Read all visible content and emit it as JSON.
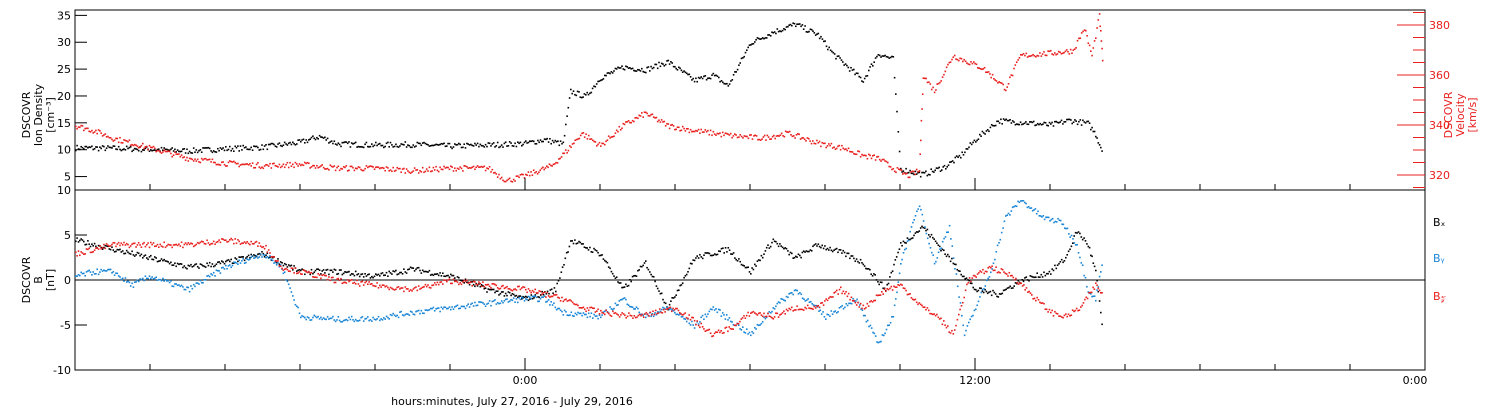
{
  "chart_data": [
    {
      "type": "scatter",
      "ylabel_left": [
        "DSCOVR",
        "Ion Density",
        "[cm⁻³]"
      ],
      "ylabel_right": [
        "DSCOVR",
        "Velocity",
        "[km/s]"
      ],
      "yticks_left": [
        5,
        10,
        15,
        20,
        25,
        30,
        35
      ],
      "ylim_left": [
        2.5,
        36
      ],
      "yticks_right": [
        320,
        340,
        360,
        380
      ],
      "ylim_right": [
        314,
        386
      ],
      "series": [
        {
          "color": "#000000",
          "axis": "left",
          "points": [
            [
              0,
              10.5
            ],
            [
              1,
              10.4
            ],
            [
              2,
              10.2
            ],
            [
              3,
              9.9
            ],
            [
              4,
              10.3
            ],
            [
              5,
              10.6
            ],
            [
              6,
              11.5
            ],
            [
              6.5,
              12.6
            ],
            [
              7,
              11.2
            ],
            [
              8,
              11.0
            ],
            [
              9,
              11.1
            ],
            [
              10,
              10.8
            ],
            [
              11,
              11.0
            ],
            [
              12,
              11.3
            ],
            [
              12.5,
              12.0
            ],
            [
              13,
              11.2
            ],
            [
              13.2,
              21
            ],
            [
              13.6,
              20
            ],
            [
              14,
              23.5
            ],
            [
              14.6,
              25.5
            ],
            [
              15.2,
              25
            ],
            [
              15.8,
              26.5
            ],
            [
              16.5,
              23
            ],
            [
              17,
              24
            ],
            [
              17.4,
              22
            ],
            [
              18,
              30
            ],
            [
              18.6,
              32
            ],
            [
              19.2,
              33.5
            ],
            [
              19.8,
              31.5
            ],
            [
              20.2,
              28
            ],
            [
              21.0,
              23
            ],
            [
              21.4,
              28
            ],
            [
              21.8,
              27
            ],
            [
              22,
              6.5
            ],
            [
              22.6,
              5.5
            ],
            [
              23.2,
              7
            ],
            [
              23.6,
              9
            ],
            [
              24.0,
              12
            ],
            [
              24.6,
              15.5
            ],
            [
              25.3,
              15.2
            ],
            [
              26.0,
              14.7
            ],
            [
              26.5,
              15.6
            ],
            [
              27,
              15
            ],
            [
              27.2,
              13
            ],
            [
              27.4,
              9.5
            ]
          ]
        },
        {
          "color": "#e8201f",
          "axis": "right",
          "points": [
            [
              0,
              340
            ],
            [
              0.5,
              338
            ],
            [
              1,
              335
            ],
            [
              2,
              331
            ],
            [
              3,
              327
            ],
            [
              4,
              325
            ],
            [
              5,
              324
            ],
            [
              6,
              324.5
            ],
            [
              7,
              323
            ],
            [
              8,
              323
            ],
            [
              9,
              322
            ],
            [
              10,
              323
            ],
            [
              11,
              323
            ],
            [
              11.5,
              318
            ],
            [
              12,
              320
            ],
            [
              12.7,
              324
            ],
            [
              13.1,
              330
            ],
            [
              13.5,
              337
            ],
            [
              14,
              332
            ],
            [
              14.6,
              340
            ],
            [
              15.2,
              345
            ],
            [
              15.8,
              340
            ],
            [
              16.5,
              338
            ],
            [
              17.5,
              336
            ],
            [
              18.3,
              335
            ],
            [
              19,
              337
            ],
            [
              19.8,
              333
            ],
            [
              20.5,
              331
            ],
            [
              21,
              328
            ],
            [
              21.4,
              327
            ],
            [
              21.8,
              323
            ],
            [
              22.2,
              320
            ],
            [
              22.5,
              322
            ],
            [
              22.6,
              360
            ],
            [
              22.9,
              354
            ],
            [
              23.4,
              368
            ],
            [
              24.2,
              363
            ],
            [
              24.8,
              355
            ],
            [
              25.2,
              368
            ],
            [
              26.0,
              369
            ],
            [
              26.6,
              370
            ],
            [
              26.9,
              379
            ],
            [
              27.1,
              368
            ],
            [
              27.3,
              384
            ],
            [
              27.4,
              363
            ]
          ]
        }
      ]
    },
    {
      "type": "scatter",
      "ylabel_left": [
        "DSCOVR",
        "B",
        "[nT]"
      ],
      "yticks": [
        -10,
        -5,
        0,
        5,
        10
      ],
      "ylim": [
        -10,
        10
      ],
      "zero_line": true,
      "legend": [
        "Bₓ",
        "Bᵧ",
        "B𝓏"
      ],
      "legend_placement": "right",
      "series": [
        {
          "name": "Bₓ",
          "color": "#000000",
          "points": [
            [
              0,
              4.5
            ],
            [
              1,
              3.5
            ],
            [
              2,
              2.5
            ],
            [
              3,
              1.5
            ],
            [
              4,
              2
            ],
            [
              5,
              3
            ],
            [
              6,
              1
            ],
            [
              7,
              1
            ],
            [
              8,
              0.5
            ],
            [
              9,
              1.3
            ],
            [
              10,
              0.5
            ],
            [
              11,
              -1
            ],
            [
              12,
              -2
            ],
            [
              12.8,
              -1
            ],
            [
              13.2,
              4.5
            ],
            [
              14,
              3
            ],
            [
              14.6,
              -1
            ],
            [
              15.2,
              2
            ],
            [
              15.8,
              -3
            ],
            [
              16.5,
              2.5
            ],
            [
              17.4,
              3.5
            ],
            [
              18,
              1
            ],
            [
              18.6,
              4.5
            ],
            [
              19.2,
              2.5
            ],
            [
              19.8,
              4
            ],
            [
              20.5,
              3
            ],
            [
              21,
              2
            ],
            [
              21.6,
              -1
            ],
            [
              22,
              4
            ],
            [
              22.6,
              6
            ],
            [
              23.4,
              2
            ],
            [
              24,
              -1
            ],
            [
              24.6,
              -1.5
            ],
            [
              25.2,
              0
            ],
            [
              26,
              1
            ],
            [
              26.4,
              2.5
            ],
            [
              26.7,
              5.5
            ],
            [
              27.0,
              4
            ],
            [
              27.2,
              1
            ],
            [
              27.4,
              -6
            ]
          ]
        },
        {
          "name": "Bᵧ",
          "color": "#1a86d6",
          "points": [
            [
              0,
              0.5
            ],
            [
              0.5,
              1
            ],
            [
              1,
              1
            ],
            [
              1.5,
              -0.5
            ],
            [
              2,
              0.5
            ],
            [
              3,
              -1
            ],
            [
              4,
              1.5
            ],
            [
              5,
              3
            ],
            [
              5.5,
              1.5
            ],
            [
              6,
              -4
            ],
            [
              7,
              -4.3
            ],
            [
              8,
              -4.2
            ],
            [
              9,
              -3.5
            ],
            [
              10,
              -3
            ],
            [
              11,
              -2.5
            ],
            [
              12,
              -2
            ],
            [
              12.5,
              -2
            ],
            [
              13,
              -3.5
            ],
            [
              14,
              -4
            ],
            [
              14.6,
              -2
            ],
            [
              15.2,
              -4
            ],
            [
              15.8,
              -3
            ],
            [
              16.5,
              -5
            ],
            [
              17,
              -3
            ],
            [
              18,
              -6
            ],
            [
              18.6,
              -3
            ],
            [
              19.2,
              -1
            ],
            [
              20,
              -4
            ],
            [
              20.8,
              -2
            ],
            [
              21.4,
              -7
            ],
            [
              21.8,
              -4
            ],
            [
              22,
              2
            ],
            [
              22.5,
              8.5
            ],
            [
              22.9,
              2
            ],
            [
              23.3,
              6
            ],
            [
              23.7,
              -6
            ],
            [
              24,
              -3
            ],
            [
              24.4,
              1
            ],
            [
              24.8,
              7
            ],
            [
              25.2,
              9
            ],
            [
              25.8,
              7
            ],
            [
              26.3,
              6.5
            ],
            [
              26.7,
              4
            ],
            [
              27,
              -1
            ],
            [
              27.2,
              -2
            ],
            [
              27.4,
              2.5
            ]
          ]
        },
        {
          "name": "B𝓏",
          "color": "#e8201f",
          "points": [
            [
              0,
              3
            ],
            [
              1,
              4
            ],
            [
              2,
              4
            ],
            [
              3,
              4
            ],
            [
              4,
              4.5
            ],
            [
              5,
              4
            ],
            [
              5.5,
              1.5
            ],
            [
              6,
              1
            ],
            [
              7,
              0
            ],
            [
              8,
              -0.5
            ],
            [
              9,
              -1
            ],
            [
              10,
              0
            ],
            [
              11,
              -0.5
            ],
            [
              12,
              -1
            ],
            [
              12.5,
              -1.5
            ],
            [
              13,
              -2
            ],
            [
              13.5,
              -3
            ],
            [
              14,
              -3.5
            ],
            [
              15,
              -4
            ],
            [
              16,
              -3
            ],
            [
              16.5,
              -4.5
            ],
            [
              17,
              -6
            ],
            [
              17.6,
              -5
            ],
            [
              18,
              -3.5
            ],
            [
              18.6,
              -4
            ],
            [
              19.2,
              -3
            ],
            [
              19.8,
              -3
            ],
            [
              20.4,
              -1
            ],
            [
              21,
              -3
            ],
            [
              21.6,
              -1
            ],
            [
              22,
              -0.5
            ],
            [
              22.6,
              -3
            ],
            [
              23,
              -4
            ],
            [
              23.4,
              -6
            ],
            [
              23.8,
              0
            ],
            [
              24.4,
              1.5
            ],
            [
              25,
              0.5
            ],
            [
              25.6,
              -2
            ],
            [
              26,
              -3.5
            ],
            [
              26.4,
              -4
            ],
            [
              26.8,
              -3
            ],
            [
              27.2,
              -0.5
            ],
            [
              27.4,
              -1.5
            ]
          ]
        }
      ]
    }
  ],
  "xaxis": {
    "xlim_hours": [
      0,
      36
    ],
    "tick_labels": [
      "0:00",
      "12:00",
      "0:00"
    ],
    "xlabel": "hours:minutes, July 27, 2016 - July 29, 2016"
  }
}
